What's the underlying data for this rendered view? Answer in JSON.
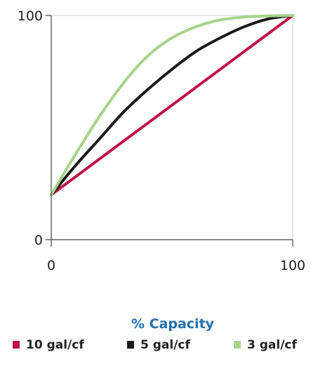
{
  "chart_data": {
    "type": "line",
    "title": "",
    "xlabel": "% Capacity",
    "ylabel": "",
    "xlim": [
      0,
      100
    ],
    "ylim": [
      0,
      100
    ],
    "x_ticks": [
      "0",
      "100"
    ],
    "y_ticks": [
      "0",
      "100"
    ],
    "grid": false,
    "legend_position": "bottom",
    "x": [
      0,
      10,
      20,
      30,
      40,
      50,
      60,
      70,
      80,
      90,
      100
    ],
    "series": [
      {
        "name": "10 gal/cf",
        "color": "#c0134a",
        "values": [
          20,
          28,
          36,
          44,
          52,
          60,
          68,
          76,
          84,
          92,
          100
        ]
      },
      {
        "name": "5 gal/cf",
        "color": "#1a1a1a",
        "values": [
          20,
          33,
          45,
          57,
          67,
          76,
          84,
          90,
          95,
          98.5,
          100
        ]
      },
      {
        "name": "3 gal/cf",
        "color": "#a6d48a",
        "values": [
          20,
          38,
          55,
          70,
          82,
          90,
          95,
          98,
          99.3,
          99.8,
          100
        ]
      }
    ],
    "colors": {
      "axis": "#444444",
      "frame": "#cccccc",
      "xlabel": "#1f6fb0"
    }
  }
}
